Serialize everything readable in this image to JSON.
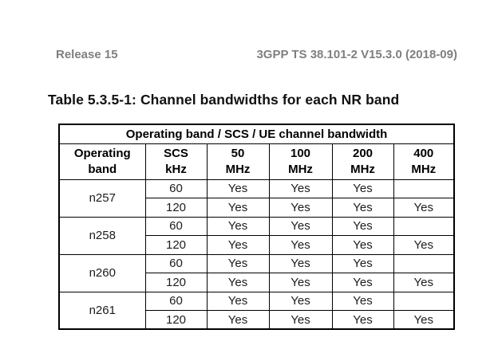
{
  "colors": {
    "page_bg": "#ffffff",
    "header_text": "#7f7f7f",
    "title_text": "#111111",
    "body_text": "#1c1c1c",
    "border": "#000000"
  },
  "header": {
    "left": "Release 15",
    "right": "3GPP TS 38.101-2 V15.3.0 (2018-09)"
  },
  "title": "Table 5.3.5-1: Channel bandwidths for each NR band",
  "table": {
    "merged_header": "Operating band / SCS / UE channel bandwidth",
    "columns": [
      "Operating\nband",
      "SCS\nkHz",
      "50\nMHz",
      "100\nMHz",
      "200\nMHz",
      "400\nMHz"
    ],
    "bands": [
      {
        "name": "n257",
        "rows": [
          {
            "scs": "60",
            "cells": [
              "Yes",
              "Yes",
              "Yes",
              ""
            ]
          },
          {
            "scs": "120",
            "cells": [
              "Yes",
              "Yes",
              "Yes",
              "Yes"
            ]
          }
        ]
      },
      {
        "name": "n258",
        "rows": [
          {
            "scs": "60",
            "cells": [
              "Yes",
              "Yes",
              "Yes",
              ""
            ]
          },
          {
            "scs": "120",
            "cells": [
              "Yes",
              "Yes",
              "Yes",
              "Yes"
            ]
          }
        ]
      },
      {
        "name": "n260",
        "rows": [
          {
            "scs": "60",
            "cells": [
              "Yes",
              "Yes",
              "Yes",
              ""
            ]
          },
          {
            "scs": "120",
            "cells": [
              "Yes",
              "Yes",
              "Yes",
              "Yes"
            ]
          }
        ]
      },
      {
        "name": "n261",
        "rows": [
          {
            "scs": "60",
            "cells": [
              "Yes",
              "Yes",
              "Yes",
              ""
            ]
          },
          {
            "scs": "120",
            "cells": [
              "Yes",
              "Yes",
              "Yes",
              "Yes"
            ]
          }
        ]
      }
    ]
  }
}
